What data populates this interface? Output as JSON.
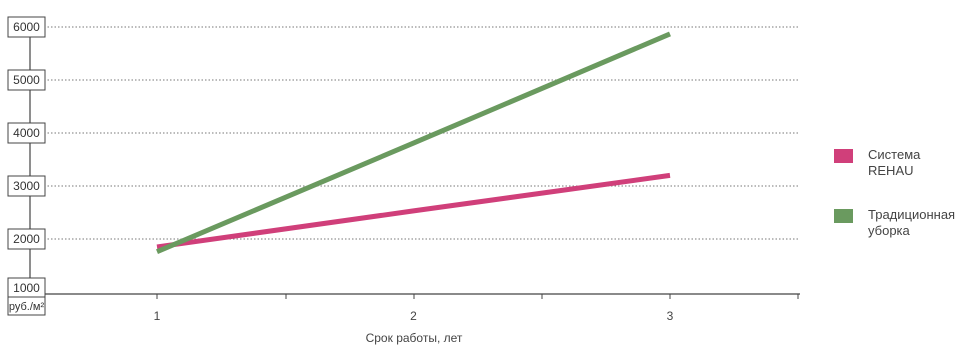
{
  "chart_data": {
    "type": "line",
    "x": [
      1,
      2,
      3
    ],
    "series": [
      {
        "name": "Система REHAU",
        "values": [
          1850,
          2530,
          3200
        ],
        "color": "#d03f7a"
      },
      {
        "name": "Традиционная уборка",
        "values": [
          1760,
          3810,
          5870
        ],
        "color": "#6a9a5f"
      }
    ],
    "xticks": [
      "1",
      "2",
      "3"
    ],
    "yticks": [
      "6000",
      "5000",
      "4000",
      "3000",
      "2000",
      "1000"
    ],
    "ylim": [
      1000,
      6000
    ],
    "yunit": "руб./м²",
    "xlabel": "Срок работы, лет",
    "grid": true,
    "legend_position": "right"
  },
  "legend": [
    {
      "line1": "Система",
      "line2": "REHAU",
      "color": "#d03f7a"
    },
    {
      "line1": "Традиционная",
      "line2": "уборка",
      "color": "#6a9a5f"
    }
  ]
}
